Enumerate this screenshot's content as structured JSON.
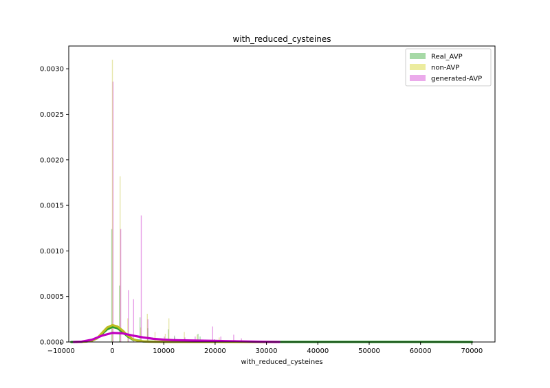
{
  "chart_data": {
    "type": "histogram",
    "title": "with_reduced_cysteines",
    "xlabel": "with_reduced_cysteines",
    "ylabel": "",
    "xlim": [
      -8500,
      74500
    ],
    "ylim": [
      0,
      0.00325
    ],
    "x_ticks": [
      -10000,
      0,
      10000,
      20000,
      30000,
      40000,
      50000,
      60000,
      70000
    ],
    "x_tick_labels": [
      "−10000",
      "0",
      "10000",
      "20000",
      "30000",
      "40000",
      "50000",
      "60000",
      "70000"
    ],
    "y_ticks": [
      0,
      0.0005,
      0.001,
      0.0015,
      0.002,
      0.0025,
      0.003
    ],
    "y_tick_labels": [
      "0.0000",
      "0.0005",
      "0.0010",
      "0.0015",
      "0.0020",
      "0.0025",
      "0.0030"
    ],
    "grid": false,
    "legend_position": "top-right",
    "series": [
      {
        "name": "Real_AVP",
        "color": "#2ca02c",
        "fill": "#a6d9a6",
        "hist": [
          {
            "x": 0,
            "y": 0.00124
          },
          {
            "x": 1500,
            "y": 0.00062
          },
          {
            "x": 5500,
            "y": 0.00027
          },
          {
            "x": 7000,
            "y": 0.00015
          },
          {
            "x": 11000,
            "y": 0.00014
          },
          {
            "x": 12200,
            "y": 7e-05
          },
          {
            "x": 16800,
            "y": 9e-05
          },
          {
            "x": 17200,
            "y": 6e-05
          },
          {
            "x": 20000,
            "y": 3e-05
          },
          {
            "x": 24000,
            "y": 2e-05
          },
          {
            "x": 70000,
            "y": 1e-05
          }
        ],
        "kde": {
          "x": [
            -8000,
            -6000,
            -4000,
            -3000,
            -2000,
            -1000,
            0,
            1000,
            2000,
            3000,
            4000,
            6000,
            10000,
            20000,
            40000,
            60000,
            70000
          ],
          "y": [
            0,
            2e-06,
            1.5e-05,
            4e-05,
            9e-05,
            0.00014,
            0.000165,
            0.00015,
            0.00011,
            6e-05,
            2.5e-05,
            6e-06,
            2e-06,
            1e-06,
            1e-06,
            1e-06,
            0
          ]
        }
      },
      {
        "name": "non-AVP",
        "color": "#bcbd22",
        "fill": "#ecec9e",
        "hist": [
          {
            "x": 0,
            "y": 0.0031
          },
          {
            "x": 1500,
            "y": 0.00182
          },
          {
            "x": 3000,
            "y": 0.00026
          },
          {
            "x": 5500,
            "y": 0.00016
          },
          {
            "x": 6800,
            "y": 0.00031
          },
          {
            "x": 8300,
            "y": 0.00011
          },
          {
            "x": 10300,
            "y": 9e-05
          },
          {
            "x": 11000,
            "y": 0.00026
          },
          {
            "x": 14000,
            "y": 0.00011
          },
          {
            "x": 16500,
            "y": 8e-05
          },
          {
            "x": 20800,
            "y": 5e-05
          },
          {
            "x": 22500,
            "y": 2e-05
          }
        ],
        "kde": {
          "x": [
            -7000,
            -5000,
            -4000,
            -3000,
            -2000,
            -1000,
            0,
            1000,
            2000,
            3000,
            4000,
            5000,
            7000,
            10000,
            14000,
            20000,
            26000,
            32000
          ],
          "y": [
            0,
            5e-06,
            1.5e-05,
            4e-05,
            0.0001,
            0.00016,
            0.000185,
            0.00017,
            0.000125,
            7e-05,
            3e-05,
            1.2e-05,
            4e-06,
            2e-06,
            1e-06,
            1e-06,
            0,
            0
          ]
        }
      },
      {
        "name": "generated-AVP",
        "color": "#c000c0",
        "fill": "#ebaaeb",
        "hist": [
          {
            "x": 0,
            "y": 0.00286
          },
          {
            "x": 1500,
            "y": 0.00124
          },
          {
            "x": 3000,
            "y": 0.00057
          },
          {
            "x": 4000,
            "y": 0.00047
          },
          {
            "x": 5500,
            "y": 0.00139
          },
          {
            "x": 6800,
            "y": 0.00025
          },
          {
            "x": 10000,
            "y": 6e-05
          },
          {
            "x": 12000,
            "y": 5e-05
          },
          {
            "x": 14000,
            "y": 5e-05
          },
          {
            "x": 16000,
            "y": 6e-05
          },
          {
            "x": 19400,
            "y": 0.00017
          },
          {
            "x": 21000,
            "y": 6e-05
          },
          {
            "x": 23500,
            "y": 8e-05
          },
          {
            "x": 25000,
            "y": 4e-05
          }
        ],
        "kde": {
          "x": [
            -7500,
            -6000,
            -4000,
            -2000,
            0,
            2000,
            4000,
            6000,
            8000,
            10000,
            12000,
            14000,
            16000,
            18000,
            20000,
            22000,
            24000,
            26000,
            28000,
            30000,
            32500
          ],
          "y": [
            0,
            4e-06,
            2.5e-05,
            7e-05,
            0.0001,
            9.5e-05,
            7e-05,
            5e-05,
            3.5e-05,
            2.6e-05,
            2e-05,
            1.8e-05,
            1.6e-05,
            1.4e-05,
            1.2e-05,
            1e-05,
            8e-06,
            6e-06,
            4e-06,
            2e-06,
            0
          ]
        }
      }
    ]
  }
}
